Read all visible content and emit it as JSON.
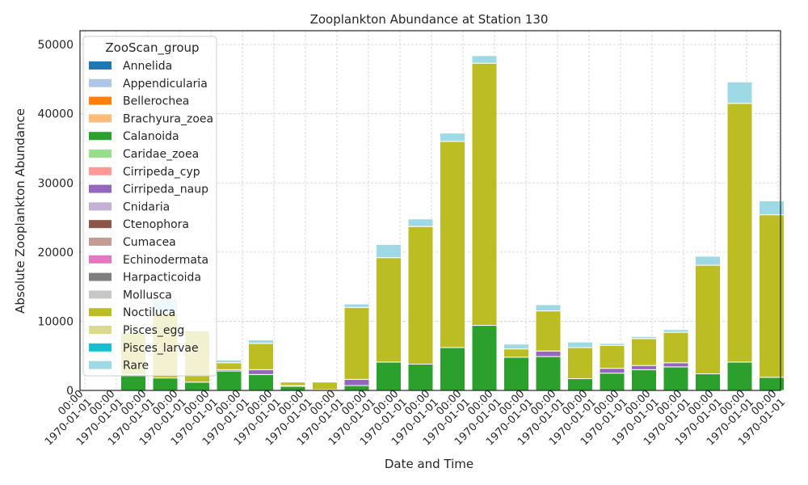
{
  "chart_data": {
    "type": "bar",
    "stacked": true,
    "title": "Zooplankton Abundance at Station 130",
    "xlabel": "Date and Time",
    "ylabel": "Absolute Zooplankton Abundance",
    "ylim": [
      0,
      52000
    ],
    "yticks": [
      0,
      10000,
      20000,
      30000,
      40000,
      50000
    ],
    "grid": true,
    "legend": {
      "title": "ZooScan_group",
      "placement": "upper-left",
      "entries": [
        "Annelida",
        "Appendicularia",
        "Bellerochea",
        "Brachyura_zoea",
        "Calanoida",
        "Caridae_zoea",
        "Cirripeda_cyp",
        "Cirripeda_naup",
        "Cnidaria",
        "Ctenophora",
        "Cumacea",
        "Echinodermata",
        "Harpacticoida",
        "Mollusca",
        "Noctiluca",
        "Pisces_egg",
        "Pisces_larvae",
        "Rare"
      ]
    },
    "colors": {
      "Annelida": "#1f77b4",
      "Appendicularia": "#aec7e8",
      "Bellerochea": "#ff7f0e",
      "Brachyura_zoea": "#ffbb78",
      "Calanoida": "#2ca02c",
      "Caridae_zoea": "#98df8a",
      "Cirripeda_cyp": "#ff9896",
      "Cirripeda_naup": "#9467bd",
      "Cnidaria": "#c5b0d5",
      "Ctenophora": "#8c564b",
      "Cumacea": "#c49c94",
      "Echinodermata": "#e377c2",
      "Harpacticoida": "#7f7f7f",
      "Mollusca": "#c7c7c7",
      "Noctiluca": "#bcbd22",
      "Pisces_egg": "#dbdb8d",
      "Pisces_larvae": "#17becf",
      "Rare": "#9edae5"
    },
    "categories": [
      "",
      "",
      "",
      "",
      "",
      "",
      "",
      "",
      "",
      "",
      "",
      "",
      "",
      "",
      "",
      "",
      "",
      "",
      "",
      "",
      "",
      ""
    ],
    "tick_labels": [
      {
        "top": "00:00",
        "bottom": "1970-01-01"
      },
      {
        "top": "00:00",
        "bottom": "1970-01-01"
      },
      {
        "top": "00:00",
        "bottom": "1970-01-01"
      },
      {
        "top": "00:00",
        "bottom": "1970-01-01"
      },
      {
        "top": "00:00",
        "bottom": "1970-01-01"
      },
      {
        "top": "00:00",
        "bottom": "1970-01-01"
      },
      {
        "top": "00:00",
        "bottom": "1970-01-01"
      },
      {
        "top": "00:00",
        "bottom": "1970-01-01"
      },
      {
        "top": "00:00",
        "bottom": "1970-01-01"
      },
      {
        "top": "00:00",
        "bottom": "1970-01-01"
      },
      {
        "top": "00:00",
        "bottom": "1970-01-01"
      },
      {
        "top": "00:00",
        "bottom": "1970-01-01"
      },
      {
        "top": "00:00",
        "bottom": "1970-01-01"
      },
      {
        "top": "00:00",
        "bottom": "1970-01-01"
      },
      {
        "top": "00:00",
        "bottom": "1970-01-01"
      },
      {
        "top": "00:00",
        "bottom": "1970-01-01"
      },
      {
        "top": "00:00",
        "bottom": "1970-01-01"
      },
      {
        "top": "00:00",
        "bottom": "1970-01-01"
      },
      {
        "top": "00:00",
        "bottom": "1970-01-01"
      },
      {
        "top": "00:00",
        "bottom": "1970-01-01"
      },
      {
        "top": "00:00",
        "bottom": "1970-01-01"
      },
      {
        "top": "00:00",
        "bottom": "1970-01-01"
      },
      {
        "top": "00:00",
        "bottom": "1970-01-01"
      }
    ],
    "series": [
      {
        "name": "Calanoida",
        "values": [
          0,
          2300,
          1800,
          1200,
          2800,
          2300,
          600,
          100,
          700,
          4100,
          3800,
          6200,
          9400,
          4800,
          4900,
          1700,
          2500,
          3000,
          3400,
          2400,
          4100,
          1900
        ]
      },
      {
        "name": "Cirripeda_naup",
        "values": [
          0,
          0,
          0,
          0,
          200,
          700,
          100,
          0,
          900,
          0,
          0,
          0,
          0,
          0,
          800,
          0,
          700,
          600,
          600,
          0,
          0,
          0
        ]
      },
      {
        "name": "Noctiluca",
        "values": [
          0,
          6000,
          9400,
          7400,
          1000,
          3800,
          500,
          1100,
          10400,
          15100,
          19900,
          29800,
          37900,
          1200,
          5800,
          4500,
          3300,
          3900,
          4400,
          15700,
          37400,
          23500
        ]
      },
      {
        "name": "Rare",
        "values": [
          0,
          0,
          2000,
          0,
          400,
          500,
          0,
          0,
          500,
          1900,
          1100,
          1200,
          1100,
          700,
          900,
          800,
          300,
          300,
          400,
          1300,
          3100,
          2000
        ]
      }
    ]
  }
}
